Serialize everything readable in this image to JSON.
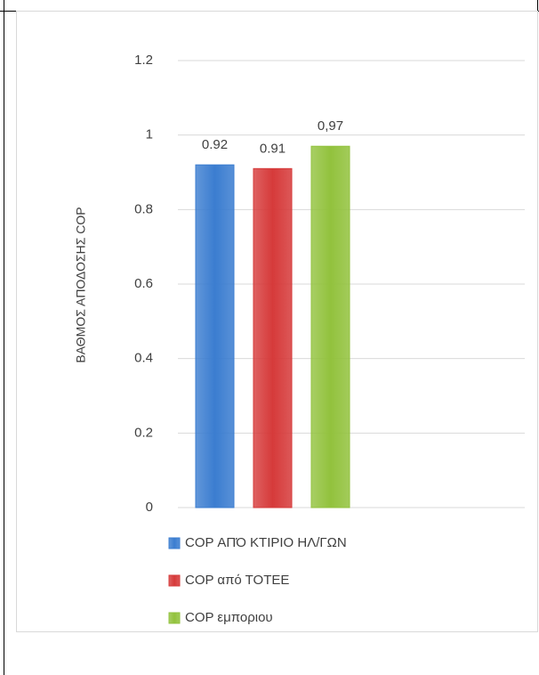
{
  "chart_data": {
    "type": "bar",
    "y_axis_label": "ΒΑΘΜΟΣ ΑΠΟΔΟΣΗΣ COP",
    "categories": [
      null
    ],
    "series": [
      {
        "name": "COP ΑΠΌ ΚΤΙΡΙΟ ΗΛ/ΓΩΝ",
        "color": "#3b7dd0",
        "values": [
          0.92
        ]
      },
      {
        "name": "COP από ΤΟΤΕΕ",
        "color": "#d63a3a",
        "values": [
          0.91
        ]
      },
      {
        "name": "COP εμποριου",
        "color": "#92c23d",
        "values": [
          0.97
        ],
        "value_labels": [
          "0,97"
        ]
      }
    ],
    "ylim": [
      0,
      1.2
    ],
    "yticks": [
      0,
      0.2,
      0.4,
      0.6,
      0.8,
      1,
      1.2
    ],
    "grid": true,
    "legend": "bottom"
  }
}
